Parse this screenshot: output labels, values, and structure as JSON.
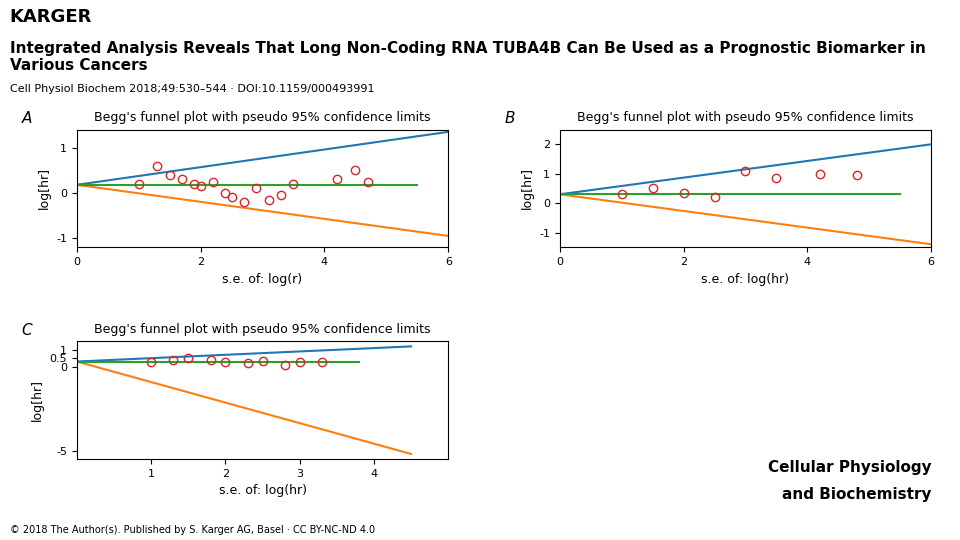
{
  "title": "Integrated Analysis Reveals That Long Non-Coding RNA TUBA4B Can Be Used as a Prognostic Biomarker in Various Cancers",
  "subtitle": "Cell Physiol Biochem 2018;49:530–544 · DOI:10.1159/000493991",
  "annotations": [
    "KARGER",
    "© 2018 The Author(s). Published by S. Karger AG, Basel · CC BY-NC-ND 4.0",
    "Cellular Physiology",
    "and Biochemistry"
  ],
  "chart_data": [
    {
      "type": "scatter",
      "title": "Begg's funnel plot with pseudo 95% confidence limits",
      "xlabel": "s.e. of: log(r)",
      "ylabel": "log[hr]",
      "annotations": [
        "A"
      ],
      "xlim": [
        0,
        6
      ],
      "ylim": [
        -1.2,
        1.4
      ],
      "xticks": [
        0,
        2,
        4,
        6
      ],
      "yticks": [
        -1,
        0,
        1
      ],
      "series": [
        {
          "type": "line",
          "x": [
            0,
            6.0
          ],
          "values": [
            0.18,
            1.35
          ]
        },
        {
          "type": "line",
          "x": [
            0,
            6.0
          ],
          "values": [
            0.18,
            -0.95
          ]
        },
        {
          "type": "line",
          "x": [
            0,
            5.5
          ],
          "values": [
            0.18,
            0.18
          ]
        },
        {
          "type": "scatter",
          "marker": "o",
          "x": [
            1.0,
            1.3,
            1.5,
            1.7,
            1.9,
            2.0,
            2.2,
            2.4,
            2.5,
            2.7,
            2.9,
            3.1,
            3.3,
            3.5,
            4.2,
            4.5,
            4.7
          ],
          "values": [
            0.2,
            0.6,
            0.4,
            0.3,
            0.2,
            0.15,
            0.25,
            0.0,
            -0.1,
            -0.2,
            0.1,
            -0.15,
            -0.05,
            0.2,
            0.3,
            0.5,
            0.25
          ]
        }
      ]
    },
    {
      "type": "scatter",
      "title": "Begg's funnel plot with pseudo 95% confidence limits",
      "xlabel": "s.e. of: log(hr)",
      "ylabel": "log[hr]",
      "annotations": [
        "B"
      ],
      "xlim": [
        0,
        6
      ],
      "ylim": [
        -1.5,
        2.5
      ],
      "xticks": [
        0,
        2,
        4,
        6
      ],
      "yticks": [
        -1,
        0,
        1,
        2
      ],
      "series": [
        {
          "type": "line",
          "x": [
            0,
            6.0
          ],
          "values": [
            0.3,
            2.0
          ]
        },
        {
          "type": "line",
          "x": [
            0,
            6.0
          ],
          "values": [
            0.3,
            -1.4
          ]
        },
        {
          "type": "line",
          "x": [
            0,
            5.5
          ],
          "values": [
            0.3,
            0.3
          ]
        },
        {
          "type": "scatter",
          "marker": "o",
          "x": [
            1.0,
            1.5,
            2.0,
            2.5,
            3.0,
            3.5,
            4.2,
            4.8
          ],
          "values": [
            0.3,
            0.5,
            0.35,
            0.2,
            1.1,
            0.85,
            1.0,
            0.95
          ]
        }
      ]
    },
    {
      "type": "scatter",
      "title": "Begg's funnel plot with pseudo 95% confidence limits",
      "xlabel": "s.e. of: log(hr)",
      "ylabel": "log[hr]",
      "annotations": [
        "C"
      ],
      "xlim": [
        0,
        5
      ],
      "ylim": [
        -5.5,
        1.5
      ],
      "xticks": [
        1,
        2,
        3,
        4
      ],
      "yticks": [
        -5,
        0,
        0.5,
        1
      ],
      "series": [
        {
          "type": "line",
          "x": [
            0,
            4.5
          ],
          "values": [
            0.3,
            1.2
          ]
        },
        {
          "type": "line",
          "x": [
            0,
            4.5
          ],
          "values": [
            0.3,
            -5.2
          ]
        },
        {
          "type": "line",
          "x": [
            0,
            3.8
          ],
          "values": [
            0.3,
            0.3
          ]
        },
        {
          "type": "scatter",
          "marker": "o",
          "x": [
            1.0,
            1.3,
            1.5,
            1.8,
            2.0,
            2.3,
            2.5,
            2.8,
            3.0,
            3.3
          ],
          "values": [
            0.3,
            0.4,
            0.5,
            0.4,
            0.3,
            0.2,
            0.35,
            0.1,
            0.25,
            0.3
          ]
        }
      ]
    }
  ]
}
